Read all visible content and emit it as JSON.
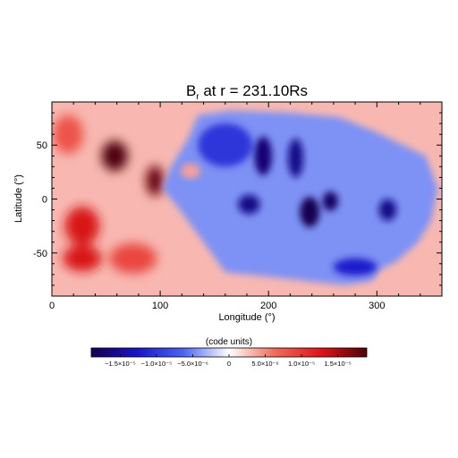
{
  "chart_data": {
    "type": "heatmap",
    "title_main": "B",
    "title_sub": "r",
    "title_rest": " at r = 231.10Rs",
    "xlabel": "Longitude (°)",
    "ylabel": "Latitude (°)",
    "xlim": [
      0,
      360
    ],
    "ylim": [
      -90,
      90
    ],
    "xticks": [
      0,
      100,
      200,
      300
    ],
    "yticks": [
      50,
      0,
      -50
    ],
    "colorbar": {
      "label": "(code units)",
      "range": [
        -1.9e-05,
        1.9e-05
      ],
      "ticks": [
        {
          "value": -1.5e-05,
          "label": "−1.5×10⁻⁵"
        },
        {
          "value": -1e-05,
          "label": "−1.0×10⁻⁵"
        },
        {
          "value": -5e-06,
          "label": "−5.0×10⁻⁶"
        },
        {
          "value": 0,
          "label": "0"
        },
        {
          "value": 5e-06,
          "label": "5.0×10⁻⁶"
        },
        {
          "value": 1e-05,
          "label": "1.0×10⁻⁵"
        },
        {
          "value": 1.5e-05,
          "label": "1.5×10⁻⁵"
        }
      ],
      "colors": [
        "#160050",
        "#1a14c8",
        "#4a64f0",
        "#ffffff",
        "#f06a5a",
        "#e0141a",
        "#500008"
      ]
    },
    "background_positive": 3e-06,
    "negative_region_lonlat": [
      [
        135,
        78
      ],
      [
        165,
        82
      ],
      [
        220,
        80
      ],
      [
        265,
        76
      ],
      [
        300,
        62
      ],
      [
        320,
        52
      ],
      [
        345,
        40
      ],
      [
        356,
        10
      ],
      [
        350,
        -20
      ],
      [
        338,
        -40
      ],
      [
        318,
        -58
      ],
      [
        302,
        -66
      ],
      [
        296,
        -76
      ],
      [
        270,
        -80
      ],
      [
        235,
        -76
      ],
      [
        200,
        -72
      ],
      [
        160,
        -68
      ],
      [
        140,
        -40
      ],
      [
        118,
        -10
      ],
      [
        102,
        10
      ],
      [
        110,
        30
      ],
      [
        125,
        55
      ]
    ],
    "features": [
      {
        "lon": 58,
        "lat": 40,
        "value": 1.9e-05,
        "lon_width": 12,
        "lat_width": 14
      },
      {
        "lon": 95,
        "lat": 17,
        "value": 1.8e-05,
        "lon_width": 8,
        "lat_width": 14
      },
      {
        "lon": 28,
        "lat": -25,
        "value": 1.3e-05,
        "lon_width": 16,
        "lat_width": 18
      },
      {
        "lon": 28,
        "lat": -55,
        "value": 1.3e-05,
        "lon_width": 18,
        "lat_width": 12
      },
      {
        "lon": 75,
        "lat": -55,
        "value": 9e-06,
        "lon_width": 22,
        "lat_width": 14
      },
      {
        "lon": 15,
        "lat": 60,
        "value": 8e-06,
        "lon_width": 14,
        "lat_width": 18
      },
      {
        "lon": 195,
        "lat": 40,
        "value": -1.7e-05,
        "lon_width": 8,
        "lat_width": 18
      },
      {
        "lon": 225,
        "lat": 38,
        "value": -1.6e-05,
        "lon_width": 7,
        "lat_width": 18
      },
      {
        "lon": 182,
        "lat": -5,
        "value": -1.6e-05,
        "lon_width": 10,
        "lat_width": 9
      },
      {
        "lon": 238,
        "lat": -12,
        "value": -1.9e-05,
        "lon_width": 9,
        "lat_width": 14
      },
      {
        "lon": 257,
        "lat": -2,
        "value": -1.8e-05,
        "lon_width": 7,
        "lat_width": 9
      },
      {
        "lon": 310,
        "lat": -10,
        "value": -1.6e-05,
        "lon_width": 8,
        "lat_width": 10
      },
      {
        "lon": 280,
        "lat": -63,
        "value": -1.2e-05,
        "lon_width": 20,
        "lat_width": 8
      },
      {
        "lon": 160,
        "lat": 50,
        "value": -1e-05,
        "lon_width": 25,
        "lat_width": 20
      }
    ],
    "positive_islands": [
      {
        "lon": 128,
        "lat": 26,
        "value": 4e-06,
        "lon_width": 9,
        "lat_width": 7
      }
    ]
  }
}
